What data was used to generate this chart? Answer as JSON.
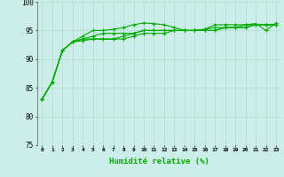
{
  "title": "",
  "xlabel": "Humidité relative (%)",
  "ylabel": "",
  "background_color": "#cceee8",
  "grid_color": "#aaddcc",
  "line_color": "#00aa00",
  "marker": "+",
  "xlim": [
    -0.5,
    23.5
  ],
  "ylim": [
    75,
    100
  ],
  "yticks": [
    75,
    80,
    85,
    90,
    95,
    100
  ],
  "xticks": [
    0,
    1,
    2,
    3,
    4,
    5,
    6,
    7,
    8,
    9,
    10,
    11,
    12,
    13,
    14,
    15,
    16,
    17,
    18,
    19,
    20,
    21,
    22,
    23
  ],
  "series": [
    [
      83,
      86,
      91.5,
      93,
      94,
      95,
      95,
      95.2,
      95.5,
      96,
      96.3,
      96.2,
      96,
      95.5,
      95,
      95,
      95.2,
      96,
      96,
      96,
      96,
      96.2,
      95,
      96.3
    ],
    [
      83,
      86,
      91.5,
      93,
      93.5,
      94,
      94.5,
      94.5,
      94.5,
      94.5,
      95,
      95,
      95,
      95,
      95,
      95,
      95.2,
      95.5,
      95.5,
      95.5,
      95.5,
      96,
      96,
      96
    ],
    [
      83,
      86,
      91.5,
      93,
      93.2,
      93.5,
      93.5,
      93.5,
      94,
      94.5,
      95,
      95,
      95,
      95,
      95,
      95,
      95,
      95,
      95.5,
      95.5,
      96,
      96,
      96,
      96
    ],
    [
      83,
      86,
      91.5,
      93,
      93.5,
      93.5,
      93.5,
      93.5,
      93.5,
      94,
      94.5,
      94.5,
      94.5,
      95,
      95,
      95,
      95,
      95,
      95.5,
      95.5,
      95.5,
      96,
      96,
      96
    ]
  ]
}
